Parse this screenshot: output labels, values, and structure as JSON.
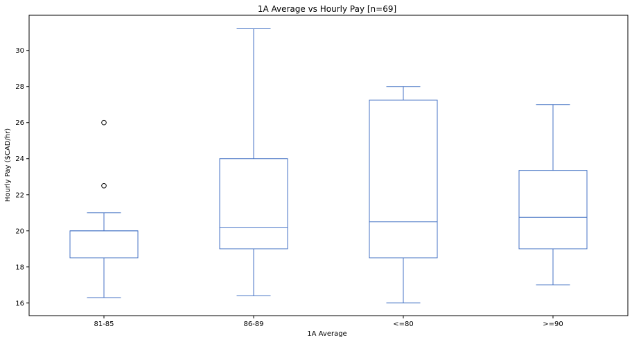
{
  "chart_data": {
    "type": "box",
    "title": "1A Average vs Hourly Pay [n=69]",
    "xlabel": "1A Average",
    "ylabel": "Hourly Pay ($CAD/hr)",
    "ylim": [
      15.3,
      31.95
    ],
    "yticks": [
      16,
      18,
      20,
      22,
      24,
      26,
      28,
      30
    ],
    "grid": false,
    "categories": [
      "81-85",
      "86-89",
      "<=80",
      ">=90"
    ],
    "boxes": [
      {
        "category": "81-85",
        "whisker_low": 16.3,
        "q1": 18.5,
        "median": 20.0,
        "q3": 20.0,
        "whisker_high": 21.0,
        "outliers": [
          22.5,
          26.0
        ]
      },
      {
        "category": "86-89",
        "whisker_low": 16.4,
        "q1": 19.0,
        "median": 20.2,
        "q3": 24.0,
        "whisker_high": 31.2,
        "outliers": []
      },
      {
        "category": "<=80",
        "whisker_low": 16.0,
        "q1": 18.5,
        "median": 20.5,
        "q3": 27.25,
        "whisker_high": 28.0,
        "outliers": []
      },
      {
        "category": ">=90",
        "whisker_low": 17.0,
        "q1": 19.0,
        "median": 20.75,
        "q3": 23.35,
        "whisker_high": 27.0,
        "outliers": []
      }
    ],
    "box_color": "#4472c4"
  }
}
